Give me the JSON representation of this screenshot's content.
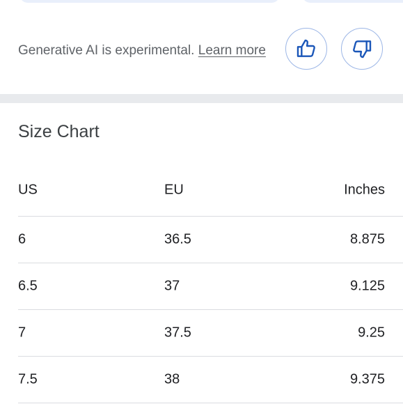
{
  "disclaimer": {
    "text": "Generative AI is experimental.",
    "link": "Learn more"
  },
  "feedback": {
    "thumbs_up_icon": "thumbs-up-icon",
    "thumbs_down_icon": "thumbs-down-icon",
    "accent_color": "#1a56b8"
  },
  "size_chart": {
    "title": "Size Chart",
    "headers": {
      "us": "US",
      "eu": "EU",
      "inches": "Inches"
    },
    "rows": [
      {
        "us": "6",
        "eu": "36.5",
        "inches": "8.875"
      },
      {
        "us": "6.5",
        "eu": "37",
        "inches": "9.125"
      },
      {
        "us": "7",
        "eu": "37.5",
        "inches": "9.25"
      },
      {
        "us": "7.5",
        "eu": "38",
        "inches": "9.375"
      }
    ]
  }
}
